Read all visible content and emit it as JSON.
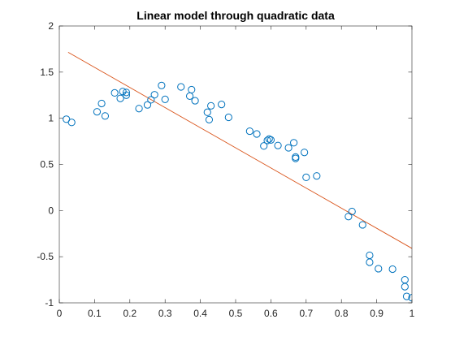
{
  "colors": {
    "axis": "#262626",
    "marker": "#0072bd",
    "fit_line": "#d95319",
    "background": "#ffffff"
  },
  "chart_data": {
    "type": "scatter",
    "title": "Linear model through quadratic data",
    "xlabel": "",
    "ylabel": "",
    "xlim": [
      0,
      1
    ],
    "ylim": [
      -1,
      2
    ],
    "x_ticks": [
      0,
      0.1,
      0.2,
      0.3,
      0.4,
      0.5,
      0.6,
      0.7,
      0.8,
      0.9,
      1
    ],
    "x_tick_labels": [
      "0",
      "0.1",
      "0.2",
      "0.3",
      "0.4",
      "0.5",
      "0.6",
      "0.7",
      "0.8",
      "0.9",
      "1"
    ],
    "y_ticks": [
      -1,
      -0.5,
      0,
      0.5,
      1,
      1.5,
      2
    ],
    "y_tick_labels": [
      "-1",
      "-0.5",
      "0",
      "0.5",
      "1",
      "1.5",
      "2"
    ],
    "grid": false,
    "series": [
      {
        "type": "scatter",
        "marker": "circle",
        "points": [
          [
            0.02,
            0.99
          ],
          [
            0.035,
            0.955
          ],
          [
            0.107,
            1.07
          ],
          [
            0.12,
            1.16
          ],
          [
            0.13,
            1.025
          ],
          [
            0.157,
            1.275
          ],
          [
            0.173,
            1.215
          ],
          [
            0.18,
            1.29
          ],
          [
            0.19,
            1.25
          ],
          [
            0.19,
            1.28
          ],
          [
            0.226,
            1.105
          ],
          [
            0.25,
            1.145
          ],
          [
            0.26,
            1.2
          ],
          [
            0.27,
            1.255
          ],
          [
            0.29,
            1.355
          ],
          [
            0.3,
            1.205
          ],
          [
            0.345,
            1.34
          ],
          [
            0.37,
            1.24
          ],
          [
            0.375,
            1.31
          ],
          [
            0.385,
            1.19
          ],
          [
            0.42,
            1.065
          ],
          [
            0.425,
            0.985
          ],
          [
            0.43,
            1.135
          ],
          [
            0.46,
            1.15
          ],
          [
            0.48,
            1.01
          ],
          [
            0.54,
            0.86
          ],
          [
            0.56,
            0.83
          ],
          [
            0.58,
            0.7
          ],
          [
            0.59,
            0.76
          ],
          [
            0.595,
            0.775
          ],
          [
            0.6,
            0.765
          ],
          [
            0.62,
            0.705
          ],
          [
            0.65,
            0.68
          ],
          [
            0.665,
            0.735
          ],
          [
            0.67,
            0.58
          ],
          [
            0.67,
            0.565
          ],
          [
            0.695,
            0.63
          ],
          [
            0.7,
            0.36
          ],
          [
            0.73,
            0.375
          ],
          [
            0.82,
            -0.065
          ],
          [
            0.83,
            -0.01
          ],
          [
            0.86,
            -0.155
          ],
          [
            0.88,
            -0.485
          ],
          [
            0.88,
            -0.56
          ],
          [
            0.905,
            -0.63
          ],
          [
            0.945,
            -0.635
          ],
          [
            0.98,
            -0.75
          ],
          [
            0.98,
            -0.825
          ],
          [
            0.985,
            -0.93
          ],
          [
            1.0,
            -0.945
          ]
        ]
      },
      {
        "type": "line",
        "points": [
          [
            0.025,
            1.715
          ],
          [
            1.0,
            -0.41
          ]
        ]
      }
    ]
  }
}
